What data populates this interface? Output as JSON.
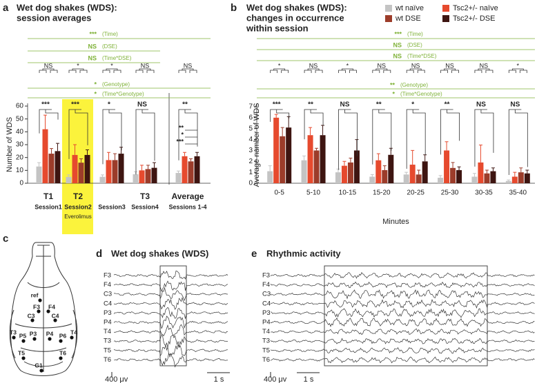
{
  "chart_data": [
    {
      "type": "bar",
      "panel": "a",
      "title": "Wet dog shakes (WDS):",
      "subtitle": [
        "session averages"
      ],
      "ylabel": "Number of WDS",
      "categories": [
        "Session1",
        "Session2",
        "Session3",
        "Session4",
        "Sessions 1-4"
      ],
      "category_tags": [
        "T1",
        "T2",
        null,
        "T3",
        "Average"
      ],
      "highlight_note": "Everolimus",
      "series": [
        {
          "color": "#c4c4c4",
          "values": [
            13,
            5,
            5,
            7,
            8
          ],
          "errors": [
            3,
            1.5,
            1.5,
            2,
            1.5
          ]
        },
        {
          "color": "#e64a2e",
          "values": [
            42,
            22,
            18,
            10,
            21
          ],
          "errors": [
            11,
            8,
            6,
            4,
            3
          ]
        },
        {
          "color": "#9c3c2a",
          "values": [
            23,
            16,
            18,
            11,
            17
          ],
          "errors": [
            4,
            3,
            5,
            3,
            2
          ]
        },
        {
          "color": "#3e1511",
          "values": [
            25,
            22,
            23,
            12,
            21
          ],
          "errors": [
            6,
            4,
            5,
            4,
            3
          ]
        }
      ],
      "ylim": [
        0,
        60
      ],
      "yticks": [
        0,
        10,
        20,
        30,
        40,
        50,
        60
      ],
      "model_tests": [
        {
          "stars": "***",
          "label": "(Time)"
        },
        {
          "stars": "NS",
          "label": "(DSE)"
        },
        {
          "stars": "NS",
          "label": "(Time*DSE)"
        }
      ],
      "pair_tests": [
        "NS",
        "*",
        "*",
        "NS",
        "NS"
      ],
      "genotype_tests": [
        {
          "stars": "*",
          "label": "(Genotype)"
        },
        {
          "stars": "*",
          "label": "(Time*Genotype)"
        }
      ],
      "group_tests": [
        "***",
        "***",
        "*",
        "NS",
        "**"
      ],
      "average_tests": [
        "**",
        "*",
        "***"
      ]
    },
    {
      "type": "bar",
      "panel": "b",
      "title": "Wet dog shakes (WDS):",
      "subtitle": [
        "changes in occurrence",
        "within session"
      ],
      "ylabel": "Average number of WDS",
      "xlabel": "Minutes",
      "categories": [
        "0-5",
        "5-10",
        "10-15",
        "15-20",
        "20-25",
        "25-30",
        "30-35",
        "35-40"
      ],
      "series": [
        {
          "name": "wt naïve",
          "color": "#c4c4c4",
          "values": [
            1.1,
            2.1,
            1.0,
            0.6,
            0.8,
            0.5,
            0.6,
            0.2
          ],
          "errors": [
            0.5,
            0.4,
            0.3,
            0.2,
            0.2,
            0.2,
            0.3,
            0.1
          ]
        },
        {
          "name": "Tsc2+/- naïve",
          "color": "#e64a2e",
          "values": [
            6.0,
            4.4,
            1.6,
            2.1,
            1.7,
            3.0,
            1.9,
            0.6
          ],
          "errors": [
            0.3,
            0.7,
            0.4,
            0.6,
            1.3,
            0.8,
            1.6,
            0.4
          ]
        },
        {
          "name": "wt DSE",
          "color": "#9c3c2a",
          "values": [
            4.3,
            3.0,
            1.9,
            1.2,
            0.8,
            1.4,
            0.9,
            1.0
          ],
          "errors": [
            0.8,
            0.2,
            0.4,
            0.4,
            0.4,
            0.5,
            0.3,
            0.4
          ]
        },
        {
          "name": "Tsc2+/- DSE",
          "color": "#3e1511",
          "values": [
            5.1,
            4.4,
            3.0,
            2.6,
            2.0,
            1.2,
            1.1,
            0.9
          ],
          "errors": [
            1.0,
            0.9,
            1.0,
            0.6,
            0.6,
            0.3,
            0.3,
            0.3
          ]
        }
      ],
      "ylim": [
        0,
        7
      ],
      "yticks": [
        0,
        1,
        2,
        3,
        4,
        5,
        6,
        7
      ],
      "legend": "top right",
      "model_tests": [
        {
          "stars": "***",
          "label": "(Time)"
        },
        {
          "stars": "NS",
          "label": "(DSE)"
        },
        {
          "stars": "NS",
          "label": "(Time*DSE)"
        }
      ],
      "pair_tests": [
        "*",
        "NS",
        "*",
        "NS",
        "NS",
        "NS",
        "NS",
        "*"
      ],
      "genotype_tests": [
        {
          "stars": "**",
          "label": "(Genotype)"
        },
        {
          "stars": "*",
          "label": "(Time*Genotype)"
        }
      ],
      "group_tests": [
        "***",
        "**",
        "NS",
        "**",
        "*",
        "**",
        "NS",
        "NS"
      ]
    }
  ],
  "panel_c": {
    "label": "c",
    "electrodes": [
      "ref",
      "F3",
      "F4",
      "C3",
      "C4",
      "T3",
      "P5",
      "P3",
      "P4",
      "P6",
      "T4",
      "T5",
      "T6",
      "G1"
    ]
  },
  "panel_d": {
    "label": "d",
    "title": "Wet dog shakes (WDS)",
    "channels": [
      "F3",
      "F4",
      "C3",
      "C4",
      "P3",
      "P4",
      "T4",
      "T3",
      "T5",
      "T6"
    ],
    "scale_amplitude": "400 μv",
    "scale_time": "1 s"
  },
  "panel_e": {
    "label": "e",
    "title": "Rhythmic activity",
    "channels": [
      "F3",
      "F4",
      "C3",
      "C4",
      "P3",
      "P4",
      "T4",
      "T3",
      "T5",
      "T6"
    ],
    "scale_amplitude": "400 μv",
    "scale_time": "1 s"
  }
}
